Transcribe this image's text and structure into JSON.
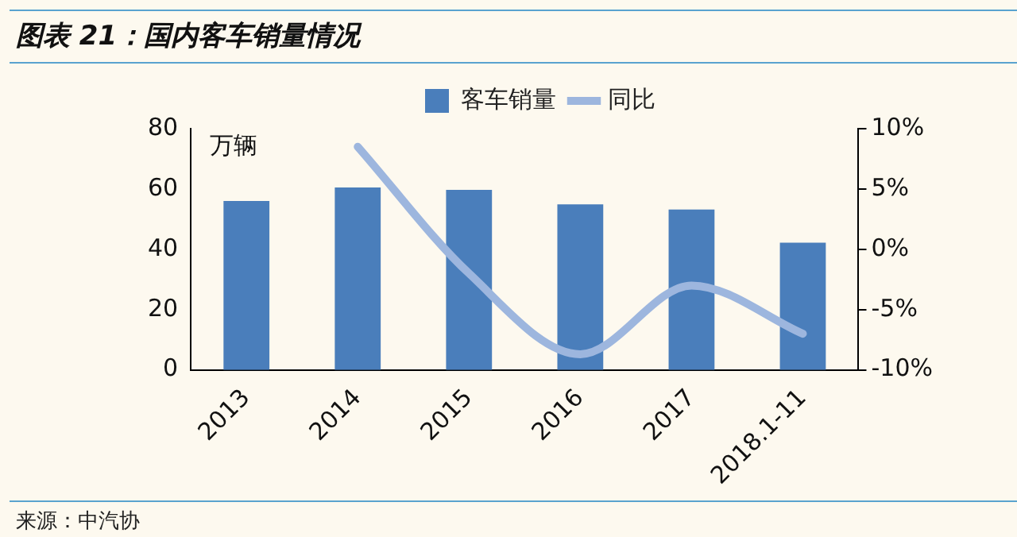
{
  "chart_data": {
    "type": "bar",
    "title": "图表 21：国内客车销量情况",
    "ylabel": "万辆",
    "categories": [
      "2013",
      "2014",
      "2015",
      "2016",
      "2017",
      "2018.1-11"
    ],
    "series": [
      {
        "name": "客车销量",
        "color": "#4a7ebb",
        "values": [
          56.0,
          60.5,
          59.7,
          54.9,
          53.2,
          42.2
        ]
      },
      {
        "name": "同比",
        "type": "line",
        "axis": "y2",
        "color": "#9db6de",
        "values": [
          null,
          8.5,
          -2.0,
          -8.7,
          -3.0,
          -7.0
        ]
      }
    ],
    "ylim": [
      0,
      80
    ],
    "yticks": [
      0,
      20,
      40,
      60,
      80
    ],
    "y2lim": [
      -10,
      10
    ],
    "y2ticks": [
      {
        "value": -10,
        "label": "-10%"
      },
      {
        "value": -5,
        "label": "-5%"
      },
      {
        "value": 0,
        "label": "0%"
      },
      {
        "value": 5,
        "label": "5%"
      },
      {
        "value": 10,
        "label": "10%"
      }
    ],
    "grid": false,
    "legend": "top",
    "marker": "none",
    "annotations": [
      "来源：中汽协"
    ]
  }
}
